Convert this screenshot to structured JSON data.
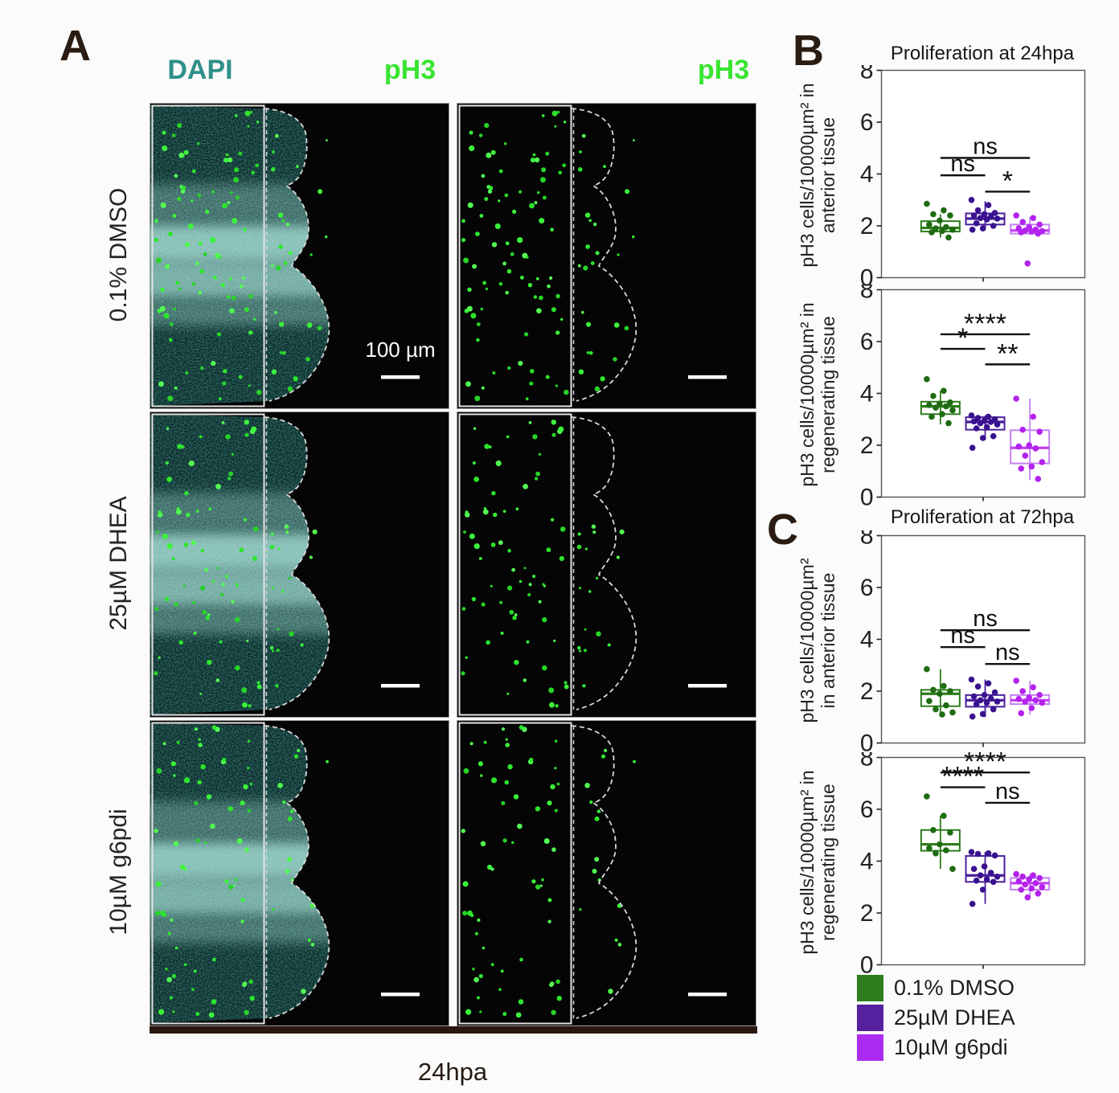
{
  "panel_a": {
    "label": "A",
    "channel_headers": [
      {
        "text": "DAPI",
        "color": "#2f9089"
      },
      {
        "text": "pH3",
        "color": "#38e431"
      },
      {
        "text": "pH3",
        "color": "#38e431"
      }
    ],
    "rows": [
      {
        "label": "0.1% DMSO",
        "seed": 11,
        "anterior_dots": 88,
        "regen_dots": 26
      },
      {
        "label": "25µM DHEA",
        "seed": 47,
        "anterior_dots": 70,
        "regen_dots": 17
      },
      {
        "label": "10µM g6pdi",
        "seed": 83,
        "anterior_dots": 64,
        "regen_dots": 15
      }
    ],
    "scale_bar_label": "100 µm",
    "time_label": "24hpa"
  },
  "panel_b": {
    "label": "B"
  },
  "panel_c": {
    "label": "C"
  },
  "legend": {
    "items": [
      {
        "label": "0.1% DMSO",
        "color": "#2e7d1e"
      },
      {
        "label": "25µM DHEA",
        "color": "#55219f"
      },
      {
        "label": "10µM g6pdi",
        "color": "#ab2cf0"
      }
    ]
  },
  "chart_data": [
    {
      "type": "box",
      "panel": "B",
      "title": "Proliferation at 24hpa",
      "ylabel_lines": [
        "pH3 cells/10000µm² in",
        "anterior tissue"
      ],
      "ylim": [
        0,
        8
      ],
      "yticks": [
        0,
        2,
        4,
        6,
        8
      ],
      "grid": false,
      "groups": [
        {
          "name": "0.1% DMSO",
          "box_color": "#2e7d1e",
          "point_color": "#1f6b12",
          "median_color": "#2e7d1e",
          "q1": 1.78,
          "median": 1.92,
          "q3": 2.18,
          "whisker_low": 1.55,
          "whisker_high": 2.45,
          "points": [
            2.85,
            2.6,
            2.45,
            2.4,
            2.2,
            2.05,
            1.95,
            1.9,
            1.85,
            1.8,
            1.75,
            1.55
          ]
        },
        {
          "name": "25µM DHEA",
          "box_color": "#4b1f9c",
          "point_color": "#39128f",
          "median_color": "#4b1f9c",
          "q1": 2.05,
          "median": 2.28,
          "q3": 2.48,
          "whisker_low": 1.85,
          "whisker_high": 2.95,
          "points": [
            3.0,
            2.8,
            2.6,
            2.5,
            2.45,
            2.4,
            2.35,
            2.3,
            2.28,
            2.25,
            2.1,
            2.0,
            1.9,
            1.85
          ]
        },
        {
          "name": "10µM g6pdi",
          "box_color": "#c480f2",
          "point_color": "#b322ee",
          "median_color": "#c33df2",
          "q1": 1.7,
          "median": 1.82,
          "q3": 2.05,
          "whisker_low": 1.65,
          "whisker_high": 2.35,
          "points": [
            2.4,
            2.3,
            2.15,
            2.05,
            1.95,
            1.9,
            1.85,
            1.82,
            1.8,
            1.78,
            1.75,
            1.7,
            0.55
          ]
        }
      ],
      "significance": [
        {
          "a": 0,
          "b": 2,
          "label": "ns",
          "y": 4.62
        },
        {
          "a": 0,
          "b": 1,
          "label": "ns",
          "y": 3.95
        },
        {
          "a": 1,
          "b": 2,
          "label": "*",
          "y": 3.32
        }
      ]
    },
    {
      "type": "box",
      "panel": "B",
      "ylabel_lines": [
        "pH3 cells/10000µm² in",
        "regenerating tissue"
      ],
      "ylim": [
        0,
        8
      ],
      "yticks": [
        0,
        2,
        4,
        6,
        8
      ],
      "grid": false,
      "groups": [
        {
          "name": "0.1% DMSO",
          "box_color": "#2e7d1e",
          "point_color": "#1f6b12",
          "median_color": "#2e7d1e",
          "q1": 3.2,
          "median": 3.5,
          "q3": 3.68,
          "whisker_low": 2.8,
          "whisker_high": 4.1,
          "points": [
            4.55,
            4.1,
            3.9,
            3.65,
            3.6,
            3.55,
            3.5,
            3.45,
            3.35,
            3.2,
            3.1,
            2.85
          ]
        },
        {
          "name": "25µM DHEA",
          "box_color": "#4b1f9c",
          "point_color": "#39128f",
          "median_color": "#4b1f9c",
          "q1": 2.6,
          "median": 2.9,
          "q3": 3.08,
          "whisker_low": 2.2,
          "whisker_high": 3.15,
          "points": [
            3.15,
            3.1,
            3.05,
            3.0,
            2.95,
            2.92,
            2.9,
            2.85,
            2.8,
            2.7,
            2.65,
            2.35,
            2.28,
            1.9
          ]
        },
        {
          "name": "10µM g6pdi",
          "box_color": "#c480f2",
          "point_color": "#b322ee",
          "median_color": "#c33df2",
          "q1": 1.3,
          "median": 1.9,
          "q3": 2.58,
          "whisker_low": 0.65,
          "whisker_high": 3.8,
          "points": [
            3.8,
            3.1,
            2.6,
            2.52,
            2.0,
            1.95,
            1.88,
            1.6,
            1.35,
            1.18,
            1.1,
            0.7
          ]
        }
      ],
      "significance": [
        {
          "a": 0,
          "b": 2,
          "label": "****",
          "y": 6.28
        },
        {
          "a": 0,
          "b": 1,
          "label": "*",
          "y": 5.72
        },
        {
          "a": 1,
          "b": 2,
          "label": "**",
          "y": 5.12
        }
      ]
    },
    {
      "type": "box",
      "panel": "C",
      "title": "Proliferation at 72hpa",
      "ylabel_lines": [
        "pH3 cells/10000µm²",
        "in anterior tissue"
      ],
      "ylim": [
        0,
        8
      ],
      "yticks": [
        0,
        2,
        4,
        6,
        8
      ],
      "grid": false,
      "groups": [
        {
          "name": "0.1% DMSO",
          "box_color": "#2e7d1e",
          "point_color": "#1f6b12",
          "median_color": "#2e7d1e",
          "q1": 1.42,
          "median": 1.9,
          "q3": 2.05,
          "whisker_low": 1.1,
          "whisker_high": 2.85,
          "points": [
            2.85,
            2.2,
            2.05,
            2.0,
            1.9,
            1.62,
            1.45,
            1.3,
            1.18,
            1.1
          ]
        },
        {
          "name": "25µM DHEA",
          "box_color": "#4b1f9c",
          "point_color": "#39128f",
          "median_color": "#4b1f9c",
          "q1": 1.4,
          "median": 1.65,
          "q3": 1.85,
          "whisker_low": 1.0,
          "whisker_high": 2.45,
          "points": [
            2.45,
            2.3,
            2.18,
            1.95,
            1.85,
            1.8,
            1.72,
            1.65,
            1.6,
            1.55,
            1.5,
            1.3,
            1.12,
            1.02
          ]
        },
        {
          "name": "10µM g6pdi",
          "box_color": "#c480f2",
          "point_color": "#b322ee",
          "median_color": "#c33df2",
          "q1": 1.5,
          "median": 1.65,
          "q3": 1.85,
          "whisker_low": 1.1,
          "whisker_high": 2.4,
          "points": [
            2.4,
            2.15,
            2.0,
            1.85,
            1.75,
            1.7,
            1.65,
            1.6,
            1.55,
            1.35,
            1.15
          ]
        }
      ],
      "significance": [
        {
          "a": 0,
          "b": 2,
          "label": "ns",
          "y": 4.35
        },
        {
          "a": 0,
          "b": 1,
          "label": "ns",
          "y": 3.7
        },
        {
          "a": 1,
          "b": 2,
          "label": "ns",
          "y": 3.05
        }
      ]
    },
    {
      "type": "box",
      "panel": "C",
      "ylabel_lines": [
        "pH3 cells/10000µm² in",
        "regenerating tissue"
      ],
      "ylim": [
        0,
        8
      ],
      "yticks": [
        0,
        2,
        4,
        6,
        8
      ],
      "grid": false,
      "groups": [
        {
          "name": "0.1% DMSO",
          "box_color": "#2e7d1e",
          "point_color": "#1f6b12",
          "median_color": "#2e7d1e",
          "q1": 4.4,
          "median": 4.65,
          "q3": 5.2,
          "whisker_low": 3.7,
          "whisker_high": 5.75,
          "points": [
            6.5,
            5.75,
            5.2,
            5.1,
            4.65,
            4.5,
            4.42,
            4.3,
            3.7
          ]
        },
        {
          "name": "25µM DHEA",
          "box_color": "#4b1f9c",
          "point_color": "#39128f",
          "median_color": "#4b1f9c",
          "q1": 3.2,
          "median": 3.45,
          "q3": 4.2,
          "whisker_low": 2.35,
          "whisker_high": 4.35,
          "points": [
            4.35,
            4.3,
            4.28,
            4.22,
            3.8,
            3.7,
            3.55,
            3.45,
            3.4,
            3.3,
            3.25,
            3.2,
            2.9,
            2.35
          ]
        },
        {
          "name": "10µM g6pdi",
          "box_color": "#c480f2",
          "point_color": "#b322ee",
          "median_color": "#c33df2",
          "q1": 2.9,
          "median": 3.15,
          "q3": 3.35,
          "whisker_low": 2.55,
          "whisker_high": 3.5,
          "points": [
            3.5,
            3.45,
            3.4,
            3.35,
            3.3,
            3.22,
            3.15,
            3.1,
            3.0,
            2.95,
            2.9,
            2.75,
            2.6
          ]
        }
      ],
      "significance": [
        {
          "a": 0,
          "b": 2,
          "label": "****",
          "y": 7.42
        },
        {
          "a": 0,
          "b": 1,
          "label": "****",
          "y": 6.85
        },
        {
          "a": 1,
          "b": 2,
          "label": "ns",
          "y": 6.25
        }
      ]
    }
  ]
}
